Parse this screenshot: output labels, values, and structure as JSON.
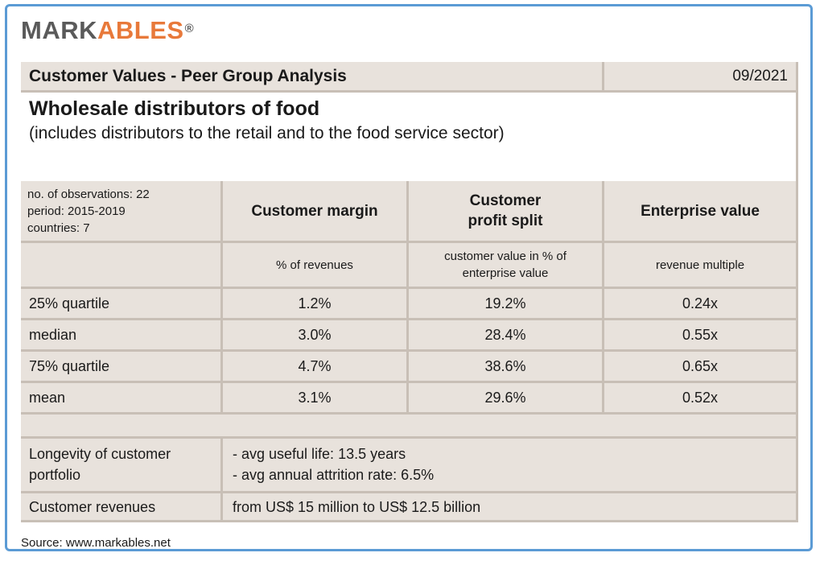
{
  "logo": {
    "part1": "MARK",
    "part2": "ABLES",
    "registered": "®"
  },
  "header": {
    "title": "Customer Values - Peer Group Analysis",
    "date": "09/2021"
  },
  "main": {
    "title": "Wholesale distributors of food",
    "subtitle": "(includes distributors to the retail and to the food service sector)"
  },
  "meta": {
    "observations": "no. of observations: 22",
    "period": "period: 2015-2019",
    "countries": "countries: 7"
  },
  "columns": [
    {
      "title_line1": "Customer margin",
      "title_line2": "",
      "unit_line1": "% of revenues",
      "unit_line2": ""
    },
    {
      "title_line1": "Customer",
      "title_line2": "profit split",
      "unit_line1": "customer value in % of",
      "unit_line2": "enterprise value"
    },
    {
      "title_line1": "Enterprise value",
      "title_line2": "",
      "unit_line1": "revenue multiple",
      "unit_line2": ""
    }
  ],
  "rows": [
    {
      "label": "25% quartile",
      "values": [
        "1.2%",
        "19.2%",
        "0.24x"
      ]
    },
    {
      "label": "median",
      "values": [
        "3.0%",
        "28.4%",
        "0.55x"
      ]
    },
    {
      "label": "75% quartile",
      "values": [
        "4.7%",
        "38.6%",
        "0.65x"
      ]
    },
    {
      "label": "mean",
      "values": [
        "3.1%",
        "29.6%",
        "0.52x"
      ]
    }
  ],
  "longevity": {
    "label_line1": "Longevity of customer",
    "label_line2": "portfolio",
    "line1": "- avg useful life: 13.5 years",
    "line2": "- avg annual attrition rate: 6.5%"
  },
  "revenues": {
    "label": "Customer revenues",
    "value": "from US$ 15 million to US$ 12.5 billion"
  },
  "source": "Source: www.markables.net"
}
